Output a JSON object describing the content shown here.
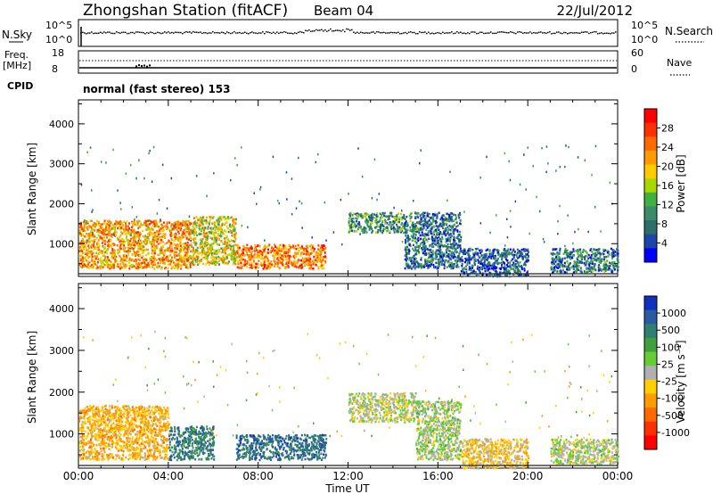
{
  "header": {
    "station": "Zhongshan Station (fitACF)",
    "beam": "Beam 04",
    "date": "22/Jul/2012"
  },
  "strip": {
    "nsky_label": "N.Sky",
    "nsearch_label": "N.Search",
    "freq_label_top": "Freq.",
    "freq_label_unit": "[MHz]",
    "nave_label": "Nave",
    "cpid_label": "CPID",
    "cpid_text": "normal (fast stereo) 153",
    "nsky_ticks": [
      "10^5",
      "10^0"
    ],
    "nsearch_ticks": [
      "10^5",
      "10^0"
    ],
    "freq_ticks": [
      "18",
      "8"
    ],
    "nave_ticks": [
      "60",
      "0"
    ]
  },
  "panels": {
    "ylabel": "Slant Range [km]",
    "yticks": [
      "4000",
      "3000",
      "2000",
      "1000"
    ],
    "xticks": [
      "00:00",
      "04:00",
      "08:00",
      "12:00",
      "16:00",
      "20:00",
      "00:00"
    ],
    "xlabel": "Time UT"
  },
  "power_scale": {
    "label": "Power [dB]",
    "ticks": [
      "28",
      "24",
      "20",
      "16",
      "12",
      "8",
      "4"
    ],
    "colors": [
      "#ff0000",
      "#ff3000",
      "#ff6a00",
      "#ff9a00",
      "#ffcc00",
      "#a8d800",
      "#40b040",
      "#3a8c6a",
      "#2c6e6a",
      "#1d46a8",
      "#0000ff"
    ]
  },
  "velocity_scale": {
    "label": "Velocity [m s⁻¹]",
    "ticks": [
      "1000",
      "500",
      "100",
      "25",
      "-25",
      "-100",
      "-500",
      "-1000"
    ],
    "colors": [
      "#1030c0",
      "#2a5aa0",
      "#2f8070",
      "#40a040",
      "#66cc33",
      "#b0b0b0",
      "#ffd000",
      "#ff9a00",
      "#ff6a00",
      "#ff3000",
      "#ff0000"
    ]
  },
  "chart_data": [
    {
      "type": "heatmap",
      "title": "Power",
      "xlabel": "Time UT",
      "ylabel": "Slant Range [km]",
      "x_range": [
        "00:00",
        "24:00"
      ],
      "ylim": [
        180,
        4600
      ],
      "colorbar_label": "Power [dB]",
      "colorbar_ticks": [
        28,
        24,
        20,
        16,
        12,
        8,
        4
      ],
      "regions": [
        {
          "t_start": 0.0,
          "t_end": 5.0,
          "range_km": [
            400,
            1600
          ],
          "power_db": 22
        },
        {
          "t_start": 5.0,
          "t_end": 7.0,
          "range_km": [
            500,
            1700
          ],
          "power_db": 18
        },
        {
          "t_start": 7.0,
          "t_end": 11.0,
          "range_km": [
            400,
            1000
          ],
          "power_db": 24
        },
        {
          "t_start": 12.0,
          "t_end": 14.5,
          "range_km": [
            1300,
            1800
          ],
          "power_db": 10
        },
        {
          "t_start": 14.5,
          "t_end": 17.0,
          "range_km": [
            400,
            1800
          ],
          "power_db": 8
        },
        {
          "t_start": 17.0,
          "t_end": 20.0,
          "range_km": [
            200,
            900
          ],
          "power_db": 6
        },
        {
          "t_start": 21.0,
          "t_end": 24.0,
          "range_km": [
            300,
            900
          ],
          "power_db": 8
        }
      ]
    },
    {
      "type": "heatmap",
      "title": "Velocity",
      "xlabel": "Time UT",
      "ylabel": "Slant Range [km]",
      "x_range": [
        "00:00",
        "24:00"
      ],
      "ylim": [
        180,
        4600
      ],
      "colorbar_label": "Velocity [m s⁻¹]",
      "colorbar_ticks": [
        1000,
        500,
        100,
        25,
        -25,
        -100,
        -500,
        -1000
      ],
      "regions": [
        {
          "t_start": 0.0,
          "t_end": 4.0,
          "range_km": [
            400,
            1700
          ],
          "velocity": -300
        },
        {
          "t_start": 4.0,
          "t_end": 6.0,
          "range_km": [
            400,
            1200
          ],
          "velocity": 600
        },
        {
          "t_start": 7.0,
          "t_end": 11.0,
          "range_km": [
            400,
            1000
          ],
          "velocity": 700
        },
        {
          "t_start": 12.0,
          "t_end": 15.0,
          "range_km": [
            1300,
            2000
          ],
          "velocity": 0
        },
        {
          "t_start": 15.0,
          "t_end": 17.0,
          "range_km": [
            400,
            1800
          ],
          "velocity": 80
        },
        {
          "t_start": 17.0,
          "t_end": 20.0,
          "range_km": [
            200,
            900
          ],
          "velocity": -200
        },
        {
          "t_start": 21.0,
          "t_end": 24.0,
          "range_km": [
            300,
            900
          ],
          "velocity": 60
        }
      ]
    }
  ]
}
